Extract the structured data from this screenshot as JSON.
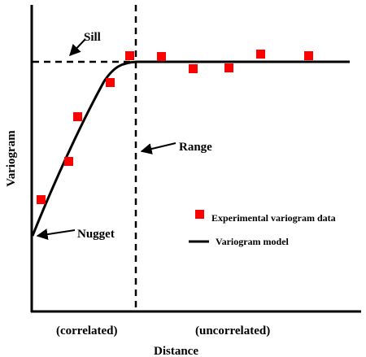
{
  "labels": {
    "sill": "Sill",
    "range": "Range",
    "nugget": "Nugget",
    "y_axis": "Variogram",
    "x_axis": "Distance",
    "correlated": "(correlated)",
    "uncorrelated": "(uncorrelated)"
  },
  "legend": {
    "data_label": "Experimental variogram data",
    "model_label": "Variogram model"
  },
  "colors": {
    "data_points": "#ff0000",
    "lines": "#000000",
    "background": "#ffffff"
  }
}
